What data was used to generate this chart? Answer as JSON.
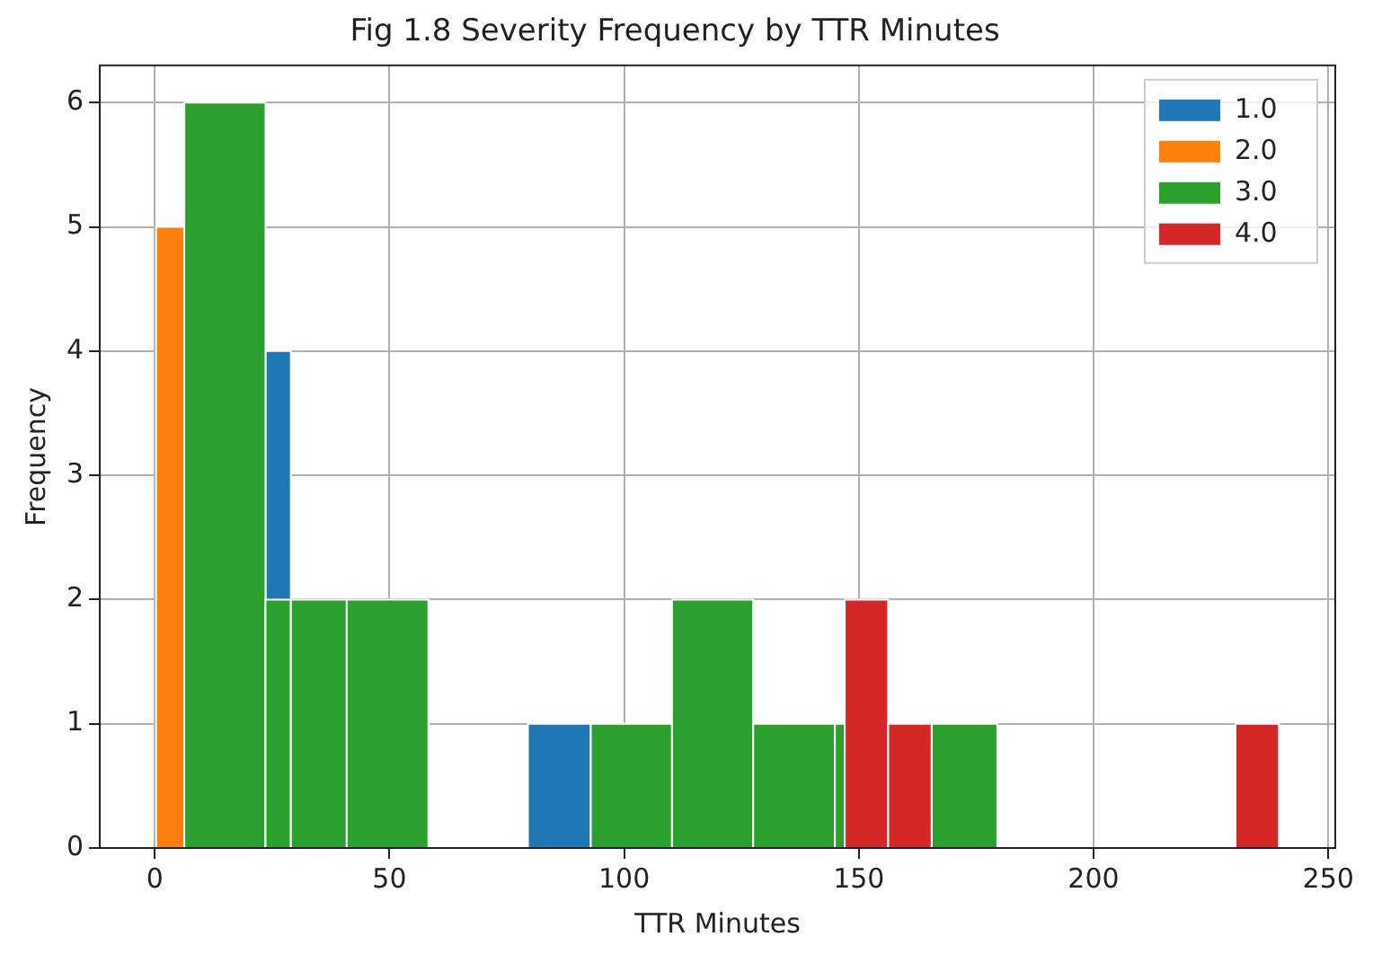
{
  "chart_data": {
    "type": "histogram",
    "title": "Fig 1.8 Severity Frequency by TTR Minutes",
    "xlabel": "TTR Minutes",
    "ylabel": "Frequency",
    "bins": [
      0.3,
      6.3,
      23.6,
      29,
      40.9,
      58.3,
      79.5,
      92.9,
      110.2,
      127.5,
      144.9,
      147,
      156.25,
      165.5,
      179.5,
      230.25,
      239.5
    ],
    "series": [
      {
        "name": "1.0",
        "color": "#1f77b4",
        "values": [
          null,
          null,
          4,
          null,
          null,
          null,
          1,
          null,
          null,
          null,
          null,
          null,
          null,
          null,
          null,
          null
        ]
      },
      {
        "name": "2.0",
        "color": "#ff7f0e",
        "values": [
          5,
          null,
          null,
          null,
          null,
          null,
          null,
          null,
          null,
          null,
          null,
          null,
          null,
          null,
          null,
          null
        ]
      },
      {
        "name": "3.0",
        "color": "#2ca02c",
        "values": [
          null,
          6,
          2,
          2,
          2,
          null,
          null,
          1,
          2,
          1,
          1,
          null,
          null,
          1,
          null,
          null
        ]
      },
      {
        "name": "4.0",
        "color": "#d62728",
        "values": [
          null,
          null,
          null,
          null,
          null,
          null,
          null,
          null,
          null,
          null,
          null,
          2,
          1,
          null,
          null,
          1
        ]
      }
    ],
    "xlim": [
      -11.7,
      251.5
    ],
    "xticks": [
      0,
      50,
      100,
      150,
      200,
      250
    ],
    "ylim": [
      0,
      6.3
    ],
    "yticks": [
      0,
      1,
      2,
      3,
      4,
      5,
      6
    ],
    "grid": true,
    "legend": "top right"
  }
}
